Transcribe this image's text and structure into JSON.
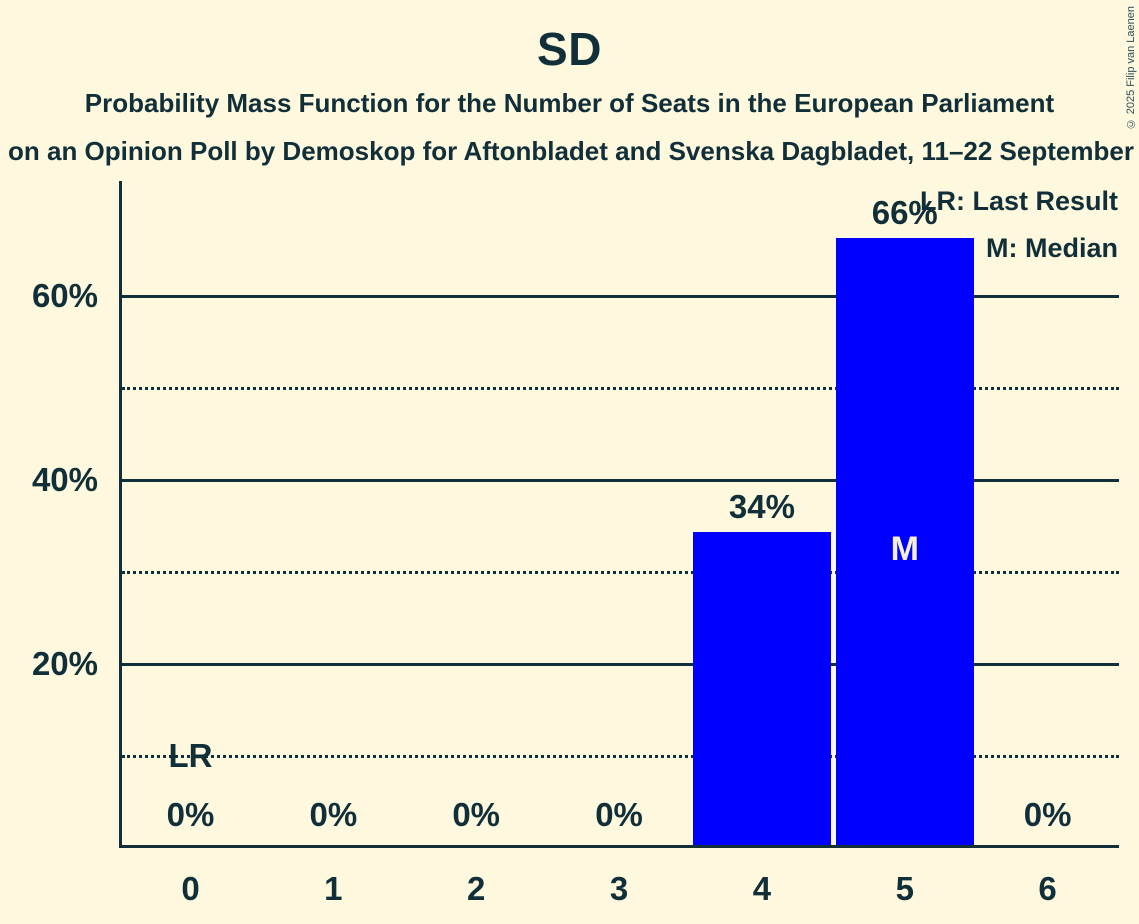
{
  "header": {
    "title": "SD",
    "subtitle_line1": "Probability Mass Function for the Number of Seats in the European Parliament",
    "subtitle_line2": "on an Opinion Poll by Demoskop for Aftonbladet and Svenska Dagbladet, 11–22 September",
    "copyright": "© 2025 Filip van Laenen"
  },
  "legend": {
    "lr_label": "LR: Last Result",
    "m_label": "M: Median"
  },
  "colors": {
    "background": "#fdf8de",
    "bar": "#0000ff",
    "text": "#112f38",
    "bar_inner_label": "#f5efda"
  },
  "chart_data": {
    "type": "bar",
    "title": "SD",
    "categories": [
      "0",
      "1",
      "2",
      "3",
      "4",
      "5",
      "6"
    ],
    "values": [
      0,
      0,
      0,
      0,
      34,
      66,
      0
    ],
    "value_labels": [
      "0%",
      "0%",
      "0%",
      "0%",
      "34%",
      "66%",
      "0%"
    ],
    "ylim": [
      0,
      72.5
    ],
    "yticks": [
      {
        "value": 20,
        "label": "20%"
      },
      {
        "value": 40,
        "label": "40%"
      },
      {
        "value": 60,
        "label": "60%"
      }
    ],
    "gridlines": {
      "solid": [
        20,
        40,
        60
      ],
      "dotted": [
        10,
        30,
        50
      ]
    },
    "legend_position": "top-right",
    "annotations": [
      {
        "text": "LR",
        "category": "0",
        "meaning": "Last Result",
        "y_value": 10
      },
      {
        "text": "M",
        "category": "5",
        "meaning": "Median",
        "y_value": 32.5
      }
    ]
  }
}
